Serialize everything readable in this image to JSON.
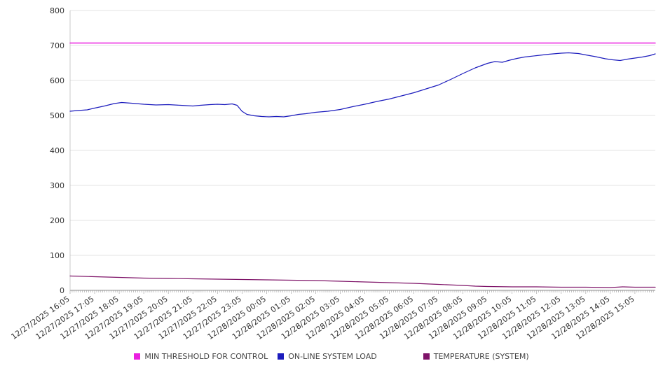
{
  "chart_data": {
    "type": "line",
    "title": "",
    "xlabel": "",
    "ylabel": "",
    "ylim": [
      0,
      800
    ],
    "yticks": [
      0,
      100,
      200,
      300,
      400,
      500,
      600,
      700,
      800
    ],
    "grid": "horizontal",
    "legend_position": "bottom",
    "x_span_hours": 23.83,
    "x_tick_labels": [
      "12/27/2025 16:05",
      "12/27/2025 17:05",
      "12/27/2025 18:05",
      "12/27/2025 19:05",
      "12/27/2025 20:05",
      "12/27/2025 21:05",
      "12/27/2025 22:05",
      "12/27/2025 23:05",
      "12/28/2025 00:05",
      "12/28/2025 01:05",
      "12/28/2025 02:05",
      "12/28/2025 03:05",
      "12/28/2025 04:05",
      "12/28/2025 05:05",
      "12/28/2025 06:05",
      "12/28/2025 07:05",
      "12/28/2025 08:05",
      "12/28/2025 09:05",
      "12/28/2025 10:05",
      "12/28/2025 11:05",
      "12/28/2025 12:05",
      "12/28/2025 13:05",
      "12/28/2025 14:05",
      "12/28/2025 15:05"
    ],
    "series": [
      {
        "name": "MIN THRESHOLD FOR CONTROL",
        "color": "#ea1fe0",
        "width": 1.5,
        "points": [
          [
            0,
            707
          ],
          [
            23.83,
            707
          ]
        ]
      },
      {
        "name": "ON-LINE SYSTEM LOAD",
        "color": "#1c1cbd",
        "width": 1.2,
        "points": [
          [
            0,
            512
          ],
          [
            0.3,
            514
          ],
          [
            0.7,
            516
          ],
          [
            1,
            521
          ],
          [
            1.4,
            527
          ],
          [
            1.8,
            534
          ],
          [
            2.1,
            537
          ],
          [
            2.5,
            535
          ],
          [
            3,
            532
          ],
          [
            3.5,
            530
          ],
          [
            4,
            531
          ],
          [
            4.5,
            529
          ],
          [
            5,
            527
          ],
          [
            5.3,
            529
          ],
          [
            5.7,
            531
          ],
          [
            6,
            532
          ],
          [
            6.3,
            531
          ],
          [
            6.6,
            533
          ],
          [
            6.8,
            529
          ],
          [
            7,
            512
          ],
          [
            7.2,
            503
          ],
          [
            7.5,
            499
          ],
          [
            7.8,
            497
          ],
          [
            8.1,
            496
          ],
          [
            8.4,
            497
          ],
          [
            8.7,
            496
          ],
          [
            9,
            499
          ],
          [
            9.3,
            503
          ],
          [
            9.6,
            505
          ],
          [
            10,
            509
          ],
          [
            10.5,
            512
          ],
          [
            11,
            517
          ],
          [
            11.5,
            525
          ],
          [
            12,
            532
          ],
          [
            12.5,
            540
          ],
          [
            13,
            547
          ],
          [
            13.5,
            556
          ],
          [
            14,
            565
          ],
          [
            14.5,
            576
          ],
          [
            15,
            587
          ],
          [
            15.5,
            603
          ],
          [
            16,
            620
          ],
          [
            16.5,
            636
          ],
          [
            17,
            649
          ],
          [
            17.3,
            654
          ],
          [
            17.6,
            652
          ],
          [
            17.9,
            658
          ],
          [
            18.2,
            663
          ],
          [
            18.5,
            667
          ],
          [
            19,
            671
          ],
          [
            19.5,
            675
          ],
          [
            20,
            678
          ],
          [
            20.3,
            679
          ],
          [
            20.7,
            677
          ],
          [
            21,
            673
          ],
          [
            21.4,
            668
          ],
          [
            21.8,
            662
          ],
          [
            22.1,
            659
          ],
          [
            22.4,
            657
          ],
          [
            22.7,
            661
          ],
          [
            23,
            664
          ],
          [
            23.3,
            667
          ],
          [
            23.6,
            671
          ],
          [
            23.83,
            676
          ]
        ]
      },
      {
        "name": "TEMPERATURE (SYSTEM)",
        "color": "#7e1368",
        "width": 1.2,
        "points": [
          [
            0,
            41
          ],
          [
            1,
            39
          ],
          [
            2,
            37
          ],
          [
            3,
            35
          ],
          [
            4,
            34
          ],
          [
            5,
            33
          ],
          [
            6,
            32
          ],
          [
            7,
            31
          ],
          [
            8,
            30
          ],
          [
            9,
            29
          ],
          [
            10,
            28
          ],
          [
            11,
            26
          ],
          [
            12,
            24
          ],
          [
            13,
            22
          ],
          [
            14,
            20
          ],
          [
            15,
            17
          ],
          [
            16,
            14
          ],
          [
            16.5,
            12
          ],
          [
            17,
            11
          ],
          [
            18,
            10
          ],
          [
            19,
            10
          ],
          [
            20,
            9
          ],
          [
            21,
            9
          ],
          [
            22,
            8
          ],
          [
            22.5,
            10
          ],
          [
            23,
            9
          ],
          [
            23.83,
            9
          ]
        ]
      }
    ]
  }
}
